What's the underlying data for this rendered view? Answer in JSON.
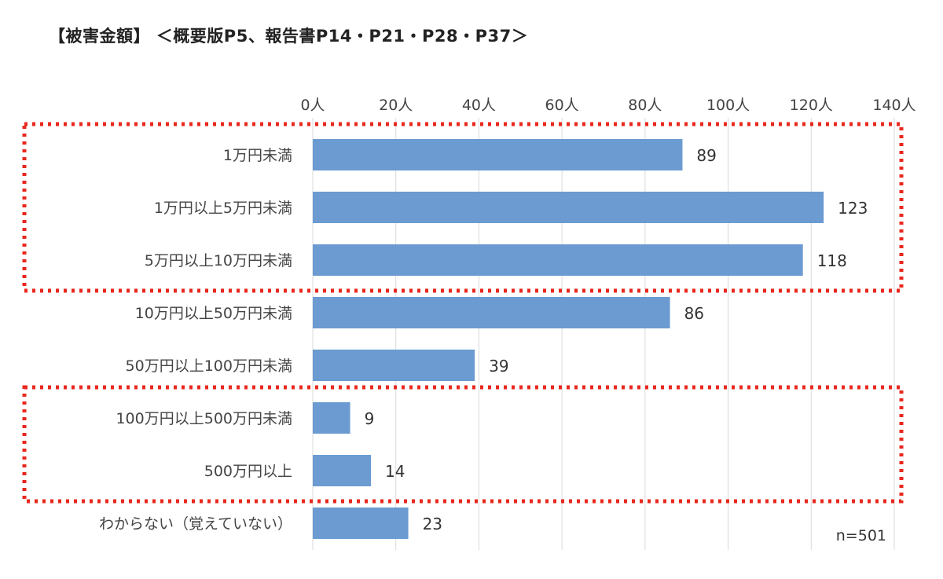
{
  "title": "【被害金額】 ＜概要版P5、報告書P14・P21・P28・P37＞",
  "chart_data": {
    "type": "bar",
    "orientation": "horizontal",
    "title": "【被害金額】 ＜概要版P5、報告書P14・P21・P28・P37＞",
    "categories": [
      "1万円未満",
      "1万円以上5万円未満",
      "5万円以上10万円未満",
      "10万円以上50万円未満",
      "50万円以上100万円未満",
      "100万円以上500万円未満",
      "500万円以上",
      "わからない（覚えていない）"
    ],
    "values": [
      89,
      123,
      118,
      86,
      39,
      9,
      14,
      23
    ],
    "xlim": [
      0,
      140
    ],
    "xticks": [
      0,
      20,
      40,
      60,
      80,
      100,
      120,
      140
    ],
    "xtick_labels": [
      "0人",
      "20人",
      "40人",
      "60人",
      "80人",
      "100人",
      "120人",
      "140人"
    ],
    "xaxis_position": "top",
    "grid": true,
    "annotation": "n=501",
    "highlight_groups": [
      [
        0,
        2
      ],
      [
        5,
        6
      ]
    ],
    "colors": {
      "bar": "#6b9bd1",
      "highlight": "#e8281e",
      "grid": "#d9d9d9"
    }
  }
}
